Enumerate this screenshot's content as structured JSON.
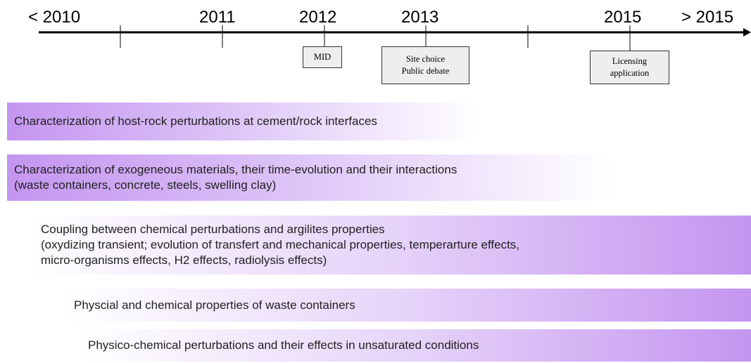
{
  "timeline": {
    "labels": [
      "< 2010",
      "2011",
      "2012",
      "2013",
      "2015",
      "> 2015"
    ]
  },
  "milestones": [
    {
      "lines": [
        "MID"
      ]
    },
    {
      "lines": [
        "Site choice",
        "Public debate"
      ]
    },
    {
      "lines": [
        "Licensing",
        "application"
      ]
    }
  ],
  "bars": [
    {
      "lines": [
        "Characterization of host-rock perturbations at cement/rock interfaces"
      ]
    },
    {
      "lines": [
        "Characterization of exogeneous materials, their time-evolution and their interactions",
        "(waste containers, concrete, steels, swelling clay)"
      ]
    },
    {
      "lines": [
        "Coupling between chemical perturbations and argilites properties",
        "(oxydizing transient; evolution of transfert and mechanical properties, temperarture effects,",
        "micro-organisms effects, H2 effects, radiolysis effects)"
      ]
    },
    {
      "lines": [
        "Physcial and chemical properties of waste containers"
      ]
    },
    {
      "lines": [
        "Physico-chemical perturbations and their effects in unsaturated conditions"
      ]
    }
  ]
}
